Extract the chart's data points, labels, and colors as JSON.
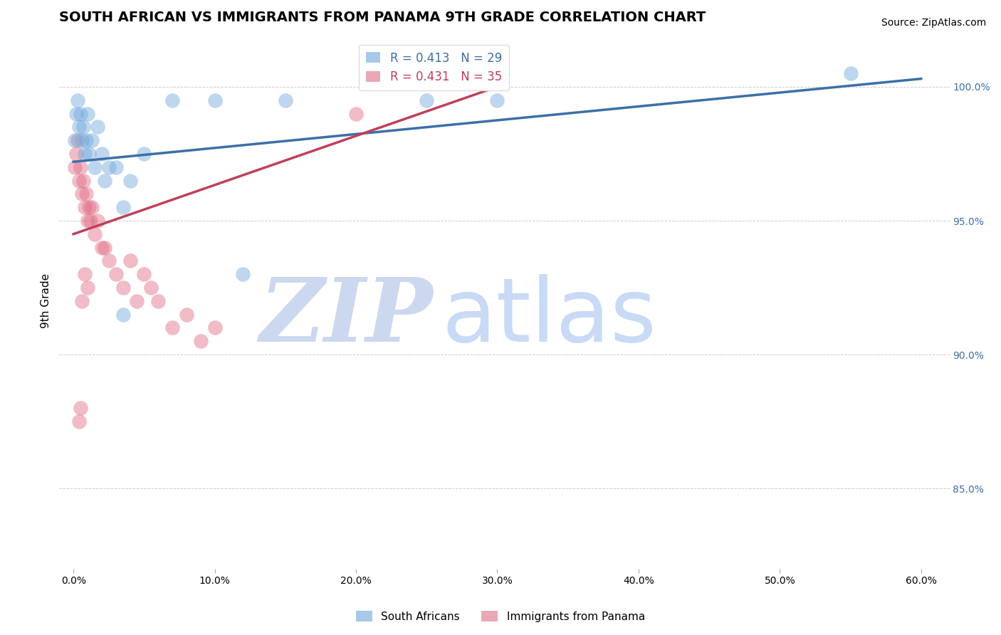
{
  "title": "SOUTH AFRICAN VS IMMIGRANTS FROM PANAMA 9TH GRADE CORRELATION CHART",
  "source_text": "Source: ZipAtlas.com",
  "ylabel": "9th Grade",
  "xlabel_vals": [
    0.0,
    10.0,
    20.0,
    30.0,
    40.0,
    50.0,
    60.0
  ],
  "xlim": [
    -1.0,
    62.0
  ],
  "ylim": [
    82.0,
    102.0
  ],
  "blue_color": "#6fa8dc",
  "pink_color": "#e06c84",
  "blue_line_color": "#3d6fa8",
  "pink_line_color": "#c0405a",
  "legend_blue_R": "R = 0.413",
  "legend_blue_N": "N = 29",
  "legend_pink_R": "R = 0.431",
  "legend_pink_N": "N = 35",
  "watermark_zip": "ZIP",
  "watermark_atlas": "atlas",
  "watermark_color_zip": "#ccd8f0",
  "watermark_color_atlas": "#c8daf5",
  "title_fontsize": 14,
  "axis_label_fontsize": 11,
  "tick_fontsize": 10,
  "legend_fontsize": 12,
  "source_fontsize": 10,
  "blue_x": [
    0.1,
    0.2,
    0.3,
    0.4,
    0.5,
    0.6,
    0.7,
    0.8,
    0.9,
    1.0,
    1.1,
    1.3,
    1.5,
    1.7,
    2.0,
    2.2,
    2.5,
    3.0,
    3.5,
    4.0,
    5.0,
    7.0,
    10.0,
    15.0,
    25.0,
    30.0,
    3.5,
    55.0,
    12.0
  ],
  "blue_y": [
    98.0,
    99.0,
    99.5,
    98.5,
    99.0,
    98.0,
    98.5,
    97.5,
    98.0,
    99.0,
    97.5,
    98.0,
    97.0,
    98.5,
    97.5,
    96.5,
    97.0,
    97.0,
    95.5,
    96.5,
    97.5,
    99.5,
    99.5,
    99.5,
    99.5,
    99.5,
    91.5,
    100.5,
    93.0
  ],
  "pink_x": [
    0.1,
    0.2,
    0.3,
    0.4,
    0.5,
    0.6,
    0.7,
    0.8,
    0.9,
    1.0,
    1.1,
    1.2,
    1.3,
    1.5,
    1.7,
    2.0,
    2.2,
    2.5,
    3.0,
    3.5,
    4.0,
    4.5,
    5.0,
    5.5,
    6.0,
    7.0,
    8.0,
    9.0,
    10.0,
    20.0,
    0.4,
    0.5,
    0.6,
    0.8,
    1.0
  ],
  "pink_y": [
    97.0,
    97.5,
    98.0,
    96.5,
    97.0,
    96.0,
    96.5,
    95.5,
    96.0,
    95.0,
    95.5,
    95.0,
    95.5,
    94.5,
    95.0,
    94.0,
    94.0,
    93.5,
    93.0,
    92.5,
    93.5,
    92.0,
    93.0,
    92.5,
    92.0,
    91.0,
    91.5,
    90.5,
    91.0,
    99.0,
    87.5,
    88.0,
    92.0,
    93.0,
    92.5
  ]
}
